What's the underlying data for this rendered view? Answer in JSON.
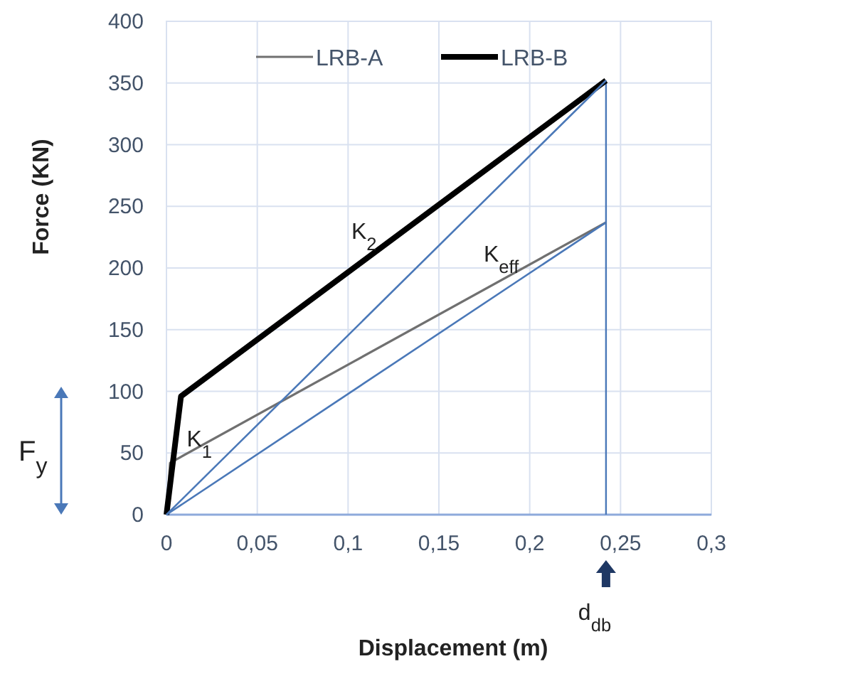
{
  "chart_data": {
    "type": "line",
    "xlabel": "Displacement (m)",
    "ylabel": "Force (KN)",
    "xlim": [
      0,
      0.3
    ],
    "xticks": [
      0,
      {
        "value": 0.05,
        "label": "0,05"
      },
      {
        "value": 0.1,
        "label": "0,1"
      },
      {
        "value": 0.15,
        "label": "0,15"
      },
      {
        "value": 0.2,
        "label": "0,2"
      },
      {
        "value": 0.25,
        "label": "0,25"
      },
      {
        "value": 0.3,
        "label": "0,3"
      }
    ],
    "ylim": [
      0,
      400
    ],
    "yticks": [
      0,
      50,
      100,
      150,
      200,
      250,
      300,
      350,
      400
    ],
    "grid": true,
    "legend": "top",
    "marker": "none",
    "line_style": "solid",
    "series": [
      {
        "name": "LRB-A",
        "color": "#707070",
        "x": [
          0,
          0.002,
          0.242
        ],
        "values": [
          0,
          42,
          237
        ]
      },
      {
        "name": "LRB-B",
        "color": "#000000",
        "x": [
          0,
          0.008,
          0.242
        ],
        "values": [
          0,
          96,
          352
        ]
      },
      {
        "color": "#4a78b8",
        "x": [
          0,
          0.242
        ],
        "values": [
          0,
          352
        ]
      },
      {
        "color": "#4a78b8",
        "x": [
          0,
          0.242
        ],
        "values": [
          0,
          237
        ]
      }
    ],
    "ref_lines": [
      {
        "axis": "x",
        "value": 0.242,
        "color": "#4a78b8"
      }
    ],
    "annotations": [
      {
        "text": "K$_{1}$",
        "x": 0.008,
        "y": 62
      },
      "K$_{2}$",
      "K$_{eff}$",
      "F$_{y}$",
      "d$_{db}$"
    ]
  }
}
